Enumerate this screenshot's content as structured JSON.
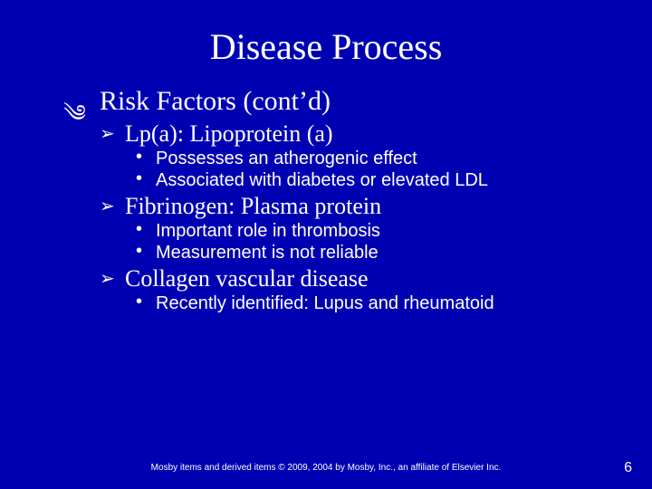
{
  "colors": {
    "background": "#0000b3",
    "text": "#ffffff"
  },
  "typography": {
    "title_family": "Times New Roman",
    "title_size_pt": 40,
    "lvl1_family": "Times New Roman",
    "lvl1_size_pt": 30,
    "lvl2_family": "Times New Roman",
    "lvl2_size_pt": 26,
    "lvl3_family": "Arial",
    "lvl3_size_pt": 20,
    "footer_size_pt": 10,
    "pagenum_size_pt": 16
  },
  "bullets": {
    "lvl1": "༄",
    "lvl2": "➢",
    "lvl3": "•"
  },
  "title": "Disease Process",
  "lvl1": {
    "text": "Risk Factors (cont’d)"
  },
  "lvl2": {
    "a": "Lp(a): Lipoprotein (a)",
    "b": "Fibrinogen: Plasma protein",
    "c": "Collagen vascular disease"
  },
  "lvl3": {
    "a1": "Possesses an atherogenic effect",
    "a2": "Associated with diabetes or elevated LDL",
    "b1": "Important role in thrombosis",
    "b2": "Measurement is not reliable",
    "c1": "Recently identified: Lupus and rheumatoid"
  },
  "footer": "Mosby items and derived items © 2009, 2004 by Mosby, Inc., an affiliate of Elsevier Inc.",
  "pagenum": "6"
}
